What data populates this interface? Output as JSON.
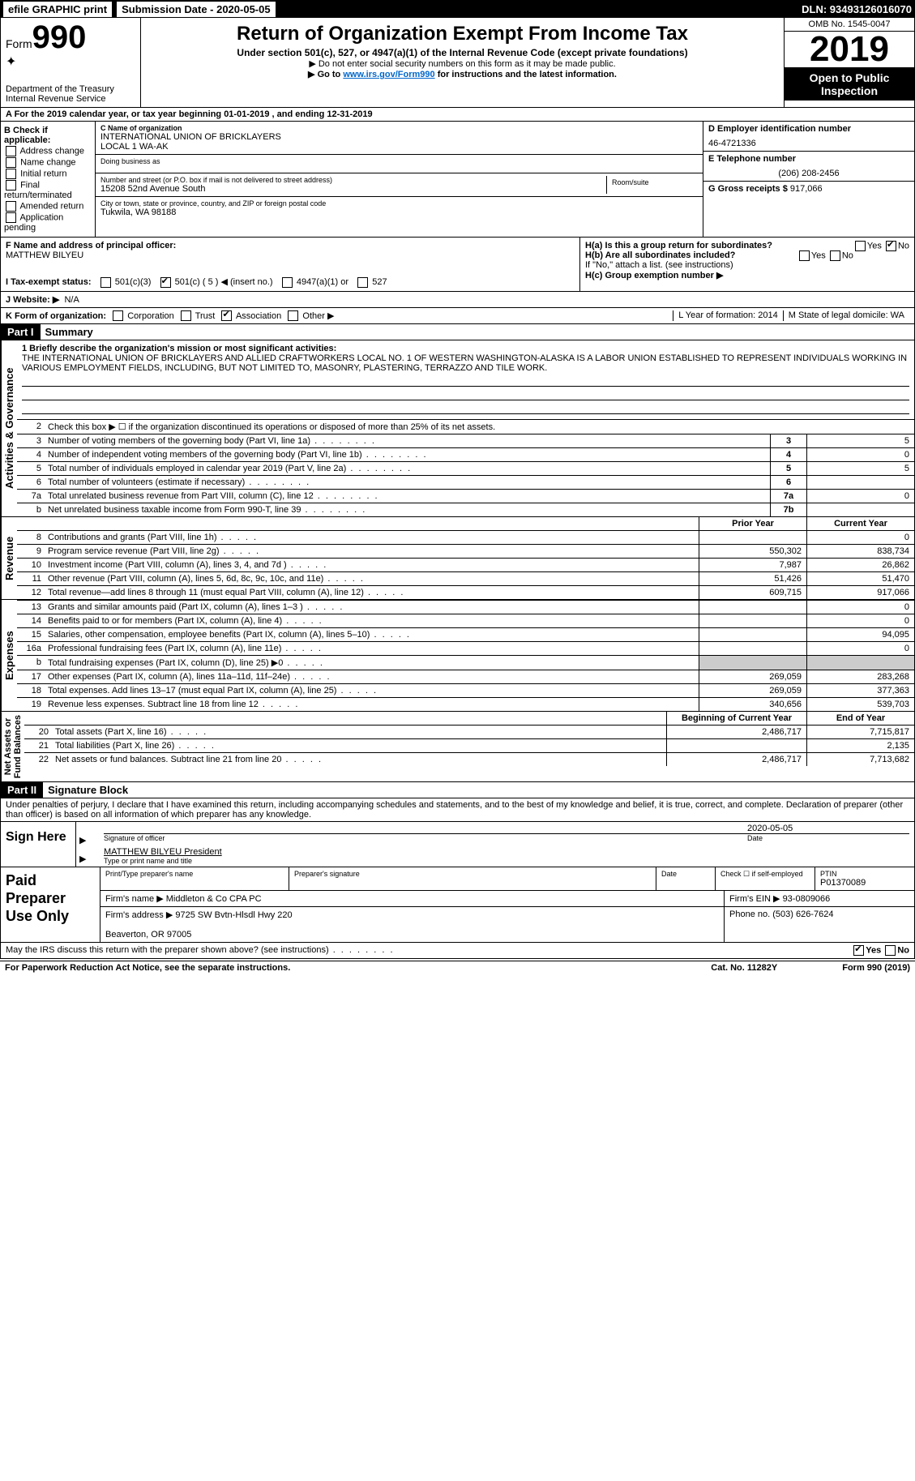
{
  "topbar": {
    "efile": "efile GRAPHIC print",
    "submission_label": "Submission Date - 2020-05-05",
    "dln": "DLN: 93493126016070"
  },
  "header": {
    "form_word": "Form",
    "form_no": "990",
    "dept": "Department of the Treasury\nInternal Revenue Service",
    "title": "Return of Organization Exempt From Income Tax",
    "subtitle": "Under section 501(c), 527, or 4947(a)(1) of the Internal Revenue Code (except private foundations)",
    "note1": "▶ Do not enter social security numbers on this form as it may be made public.",
    "note2_pre": "▶ Go to ",
    "note2_link": "www.irs.gov/Form990",
    "note2_post": " for instructions and the latest information.",
    "omb": "OMB No. 1545-0047",
    "year": "2019",
    "open": "Open to Public Inspection"
  },
  "lineA": "A For the 2019 calendar year, or tax year beginning 01-01-2019    , and ending 12-31-2019",
  "boxB": {
    "label": "B Check if applicable:",
    "items": [
      "Address change",
      "Name change",
      "Initial return",
      "Final return/terminated",
      "Amended return",
      "Application pending"
    ]
  },
  "boxC": {
    "label": "C Name of organization",
    "name": "INTERNATIONAL UNION OF BRICKLAYERS\nLOCAL 1 WA-AK",
    "dba_label": "Doing business as",
    "addr_label": "Number and street (or P.O. box if mail is not delivered to street address)",
    "addr": "15208 52nd Avenue South",
    "room_label": "Room/suite",
    "city_label": "City or town, state or province, country, and ZIP or foreign postal code",
    "city": "Tukwila, WA  98188"
  },
  "boxD": {
    "label": "D Employer identification number",
    "val": "46-4721336"
  },
  "boxE": {
    "label": "E Telephone number",
    "val": "(206) 208-2456"
  },
  "boxG": {
    "label": "G Gross receipts $",
    "val": "917,066"
  },
  "boxF": {
    "label": "F  Name and address of principal officer:",
    "val": "MATTHEW BILYEU"
  },
  "boxH": {
    "ha": "H(a)  Is this a group return for subordinates?",
    "hb": "H(b)  Are all subordinates included?",
    "hnote": "If \"No,\" attach a list. (see instructions)",
    "hc": "H(c)  Group exemption number ▶",
    "yes": "Yes",
    "no": "No"
  },
  "taxexempt": {
    "label": "I  Tax-exempt status:",
    "opts": [
      "501(c)(3)",
      "501(c) ( 5 ) ◀ (insert no.)",
      "4947(a)(1) or",
      "527"
    ]
  },
  "website": {
    "label": "J  Website: ▶",
    "val": "N/A"
  },
  "boxK": {
    "label": "K Form of organization:",
    "opts": [
      "Corporation",
      "Trust",
      "Association",
      "Other ▶"
    ],
    "checked": 2
  },
  "boxL": "L Year of formation: 2014",
  "boxM": "M State of legal domicile: WA",
  "part1": {
    "label": "Part I",
    "title": "Summary"
  },
  "summary": {
    "q1_label": "1  Briefly describe the organization's mission or most significant activities:",
    "q1_text": "THE INTERNATIONAL UNION OF BRICKLAYERS AND ALLIED CRAFTWORKERS LOCAL NO. 1 OF WESTERN WASHINGTON-ALASKA IS A LABOR UNION ESTABLISHED TO REPRESENT INDIVIDUALS WORKING IN VARIOUS EMPLOYMENT FIELDS, INCLUDING, BUT NOT LIMITED TO, MASONRY, PLASTERING, TERRAZZO AND TILE WORK.",
    "q2": "Check this box ▶ ☐  if the organization discontinued its operations or disposed of more than 25% of its net assets.",
    "lines_gov": [
      {
        "n": "3",
        "t": "Number of voting members of the governing body (Part VI, line 1a)",
        "b": "3",
        "v": "5"
      },
      {
        "n": "4",
        "t": "Number of independent voting members of the governing body (Part VI, line 1b)",
        "b": "4",
        "v": "0"
      },
      {
        "n": "5",
        "t": "Total number of individuals employed in calendar year 2019 (Part V, line 2a)",
        "b": "5",
        "v": "5"
      },
      {
        "n": "6",
        "t": "Total number of volunteers (estimate if necessary)",
        "b": "6",
        "v": ""
      },
      {
        "n": "7a",
        "t": "Total unrelated business revenue from Part VIII, column (C), line 12",
        "b": "7a",
        "v": "0"
      },
      {
        "n": "b",
        "t": "Net unrelated business taxable income from Form 990-T, line 39",
        "b": "7b",
        "v": ""
      }
    ],
    "col_prior": "Prior Year",
    "col_current": "Current Year",
    "revenue": [
      {
        "n": "8",
        "t": "Contributions and grants (Part VIII, line 1h)",
        "p": "",
        "c": "0"
      },
      {
        "n": "9",
        "t": "Program service revenue (Part VIII, line 2g)",
        "p": "550,302",
        "c": "838,734"
      },
      {
        "n": "10",
        "t": "Investment income (Part VIII, column (A), lines 3, 4, and 7d )",
        "p": "7,987",
        "c": "26,862"
      },
      {
        "n": "11",
        "t": "Other revenue (Part VIII, column (A), lines 5, 6d, 8c, 9c, 10c, and 11e)",
        "p": "51,426",
        "c": "51,470"
      },
      {
        "n": "12",
        "t": "Total revenue—add lines 8 through 11 (must equal Part VIII, column (A), line 12)",
        "p": "609,715",
        "c": "917,066"
      }
    ],
    "expenses": [
      {
        "n": "13",
        "t": "Grants and similar amounts paid (Part IX, column (A), lines 1–3 )",
        "p": "",
        "c": "0"
      },
      {
        "n": "14",
        "t": "Benefits paid to or for members (Part IX, column (A), line 4)",
        "p": "",
        "c": "0"
      },
      {
        "n": "15",
        "t": "Salaries, other compensation, employee benefits (Part IX, column (A), lines 5–10)",
        "p": "",
        "c": "94,095"
      },
      {
        "n": "16a",
        "t": "Professional fundraising fees (Part IX, column (A), line 11e)",
        "p": "",
        "c": "0"
      },
      {
        "n": "b",
        "t": "Total fundraising expenses (Part IX, column (D), line 25) ▶0",
        "p": "shade",
        "c": "shade"
      },
      {
        "n": "17",
        "t": "Other expenses (Part IX, column (A), lines 11a–11d, 11f–24e)",
        "p": "269,059",
        "c": "283,268"
      },
      {
        "n": "18",
        "t": "Total expenses. Add lines 13–17 (must equal Part IX, column (A), line 25)",
        "p": "269,059",
        "c": "377,363"
      },
      {
        "n": "19",
        "t": "Revenue less expenses. Subtract line 18 from line 12",
        "p": "340,656",
        "c": "539,703"
      }
    ],
    "col_begin": "Beginning of Current Year",
    "col_end": "End of Year",
    "netassets": [
      {
        "n": "20",
        "t": "Total assets (Part X, line 16)",
        "p": "2,486,717",
        "c": "7,715,817"
      },
      {
        "n": "21",
        "t": "Total liabilities (Part X, line 26)",
        "p": "",
        "c": "2,135"
      },
      {
        "n": "22",
        "t": "Net assets or fund balances. Subtract line 21 from line 20",
        "p": "2,486,717",
        "c": "7,713,682"
      }
    ]
  },
  "vtabs": {
    "gov": "Activities & Governance",
    "rev": "Revenue",
    "exp": "Expenses",
    "net": "Net Assets or\nFund Balances"
  },
  "part2": {
    "label": "Part II",
    "title": "Signature Block"
  },
  "sig": {
    "penalty": "Under penalties of perjury, I declare that I have examined this return, including accompanying schedules and statements, and to the best of my knowledge and belief, it is true, correct, and complete. Declaration of preparer (other than officer) is based on all information of which preparer has any knowledge.",
    "sign_here": "Sign Here",
    "sig_officer": "Signature of officer",
    "date": "Date",
    "date_val": "2020-05-05",
    "name": "MATTHEW BILYEU President",
    "name_label": "Type or print name and title"
  },
  "paid": {
    "label": "Paid Preparer Use Only",
    "h1": "Print/Type preparer's name",
    "h2": "Preparer's signature",
    "h3": "Date",
    "h4a": "Check ☐ if self-employed",
    "h4b_label": "PTIN",
    "h4b": "P01370089",
    "firm_name_label": "Firm's name    ▶",
    "firm_name": "Middleton & Co CPA PC",
    "firm_ein_label": "Firm's EIN ▶",
    "firm_ein": "93-0809066",
    "firm_addr_label": "Firm's address ▶",
    "firm_addr": "9725 SW Bvtn-Hlsdl Hwy 220\n\nBeaverton, OR  97005",
    "phone_label": "Phone no.",
    "phone": "(503) 626-7624"
  },
  "discuss": "May the IRS discuss this return with the preparer shown above? (see instructions)",
  "footer": {
    "left": "For Paperwork Reduction Act Notice, see the separate instructions.",
    "mid": "Cat. No. 11282Y",
    "right": "Form 990 (2019)"
  }
}
